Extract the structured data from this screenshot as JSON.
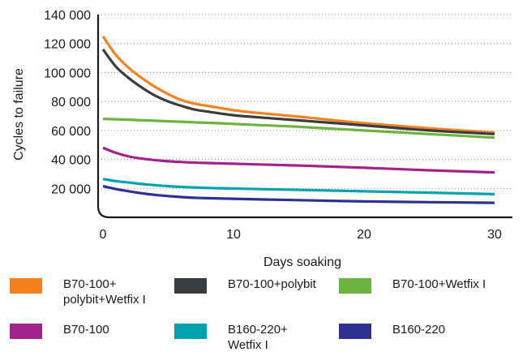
{
  "chart_data": {
    "type": "line",
    "xlabel": "Days soaking",
    "ylabel": "Cycles to failure",
    "xlim": [
      0,
      30
    ],
    "ylim": [
      0,
      140000
    ],
    "xticks": [
      0,
      10,
      20,
      30
    ],
    "xtick_labels": [
      "0",
      "10",
      "20",
      "30"
    ],
    "yticks": [
      20000,
      40000,
      60000,
      80000,
      100000,
      120000,
      140000
    ],
    "ytick_labels": [
      "20 000",
      "40 000",
      "60 000",
      "80 000",
      "100 000",
      "120 000",
      "140 000"
    ],
    "grid": "horizontal dotted",
    "legend_position": "bottom",
    "x": [
      0,
      1,
      2,
      3,
      4,
      5,
      6,
      7,
      8,
      10,
      12,
      15,
      20,
      25,
      30
    ],
    "series": [
      {
        "name": "B70-100+\npolybit+Wetfix I",
        "color": "#f5821f",
        "values": [
          125000,
          112000,
          103000,
          96000,
          90000,
          85000,
          81000,
          78500,
          77000,
          74000,
          72000,
          69500,
          65000,
          61500,
          58500
        ]
      },
      {
        "name": "B70-100+polybit",
        "color": "#3a3c3e",
        "values": [
          116000,
          104000,
          96000,
          89500,
          84000,
          80000,
          77000,
          74500,
          73000,
          70500,
          69000,
          67000,
          63500,
          60000,
          57500
        ]
      },
      {
        "name": "B70-100+Wetfix I",
        "color": "#6cb33f",
        "values": [
          68000,
          67700,
          67400,
          67000,
          66700,
          66300,
          66000,
          65600,
          65300,
          64500,
          63700,
          62500,
          60000,
          57500,
          55000
        ]
      },
      {
        "name": "B70-100",
        "color": "#a0248c",
        "values": [
          48000,
          44500,
          42000,
          40500,
          39500,
          38700,
          38200,
          37800,
          37500,
          37000,
          36500,
          35800,
          34200,
          32500,
          31000
        ]
      },
      {
        "name": "B160-220+\nWetfix I",
        "color": "#00a3ad",
        "values": [
          26500,
          25000,
          24000,
          23000,
          22200,
          21500,
          21000,
          20600,
          20300,
          19900,
          19500,
          19000,
          18000,
          17000,
          16000
        ]
      },
      {
        "name": "B160-220",
        "color": "#2e3192",
        "values": [
          21500,
          19500,
          18000,
          16600,
          15500,
          14700,
          14000,
          13500,
          13200,
          12800,
          12400,
          11900,
          11000,
          10500,
          10000
        ]
      }
    ]
  }
}
